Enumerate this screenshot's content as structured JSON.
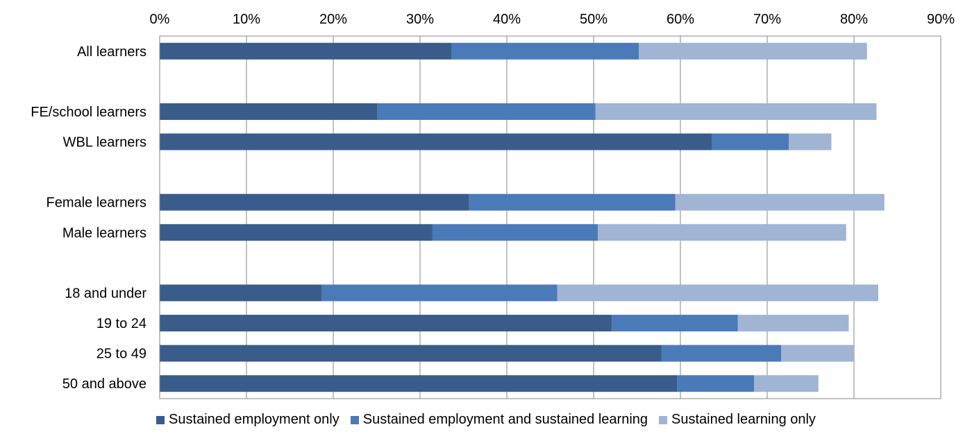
{
  "chart_data": {
    "type": "bar",
    "orientation": "horizontal",
    "stacked": true,
    "title": "",
    "xlabel": "",
    "ylabel": "",
    "xlim": [
      0,
      90
    ],
    "x_ticks": [
      "0%",
      "10%",
      "20%",
      "30%",
      "40%",
      "50%",
      "60%",
      "70%",
      "80%",
      "90%"
    ],
    "x_tick_values": [
      0,
      10,
      20,
      30,
      40,
      50,
      60,
      70,
      80,
      90
    ],
    "x_axis_position": "top",
    "grid": "vertical",
    "legend_position": "bottom",
    "categories": [
      "All learners",
      "",
      "FE/school learners",
      "WBL learners",
      "",
      "Female learners",
      "Male learners",
      "",
      "18 and under",
      "19 to 24",
      "25 to 49",
      "50 and above"
    ],
    "series": [
      {
        "name": "Sustained employment only",
        "color": "#3A5C8A",
        "values": [
          33.6,
          null,
          25.1,
          63.6,
          null,
          35.6,
          31.4,
          null,
          18.7,
          52.1,
          57.8,
          59.6
        ]
      },
      {
        "name": "Sustained employment and sustained learning",
        "color": "#4A7AB8",
        "values": [
          21.6,
          null,
          25.1,
          8.9,
          null,
          23.8,
          19.1,
          null,
          27.1,
          14.5,
          13.8,
          8.9
        ]
      },
      {
        "name": "Sustained learning only",
        "color": "#A0B4D4",
        "values": [
          26.3,
          null,
          32.4,
          4.9,
          null,
          24.1,
          28.6,
          null,
          37.0,
          12.8,
          8.4,
          7.4
        ]
      }
    ]
  }
}
